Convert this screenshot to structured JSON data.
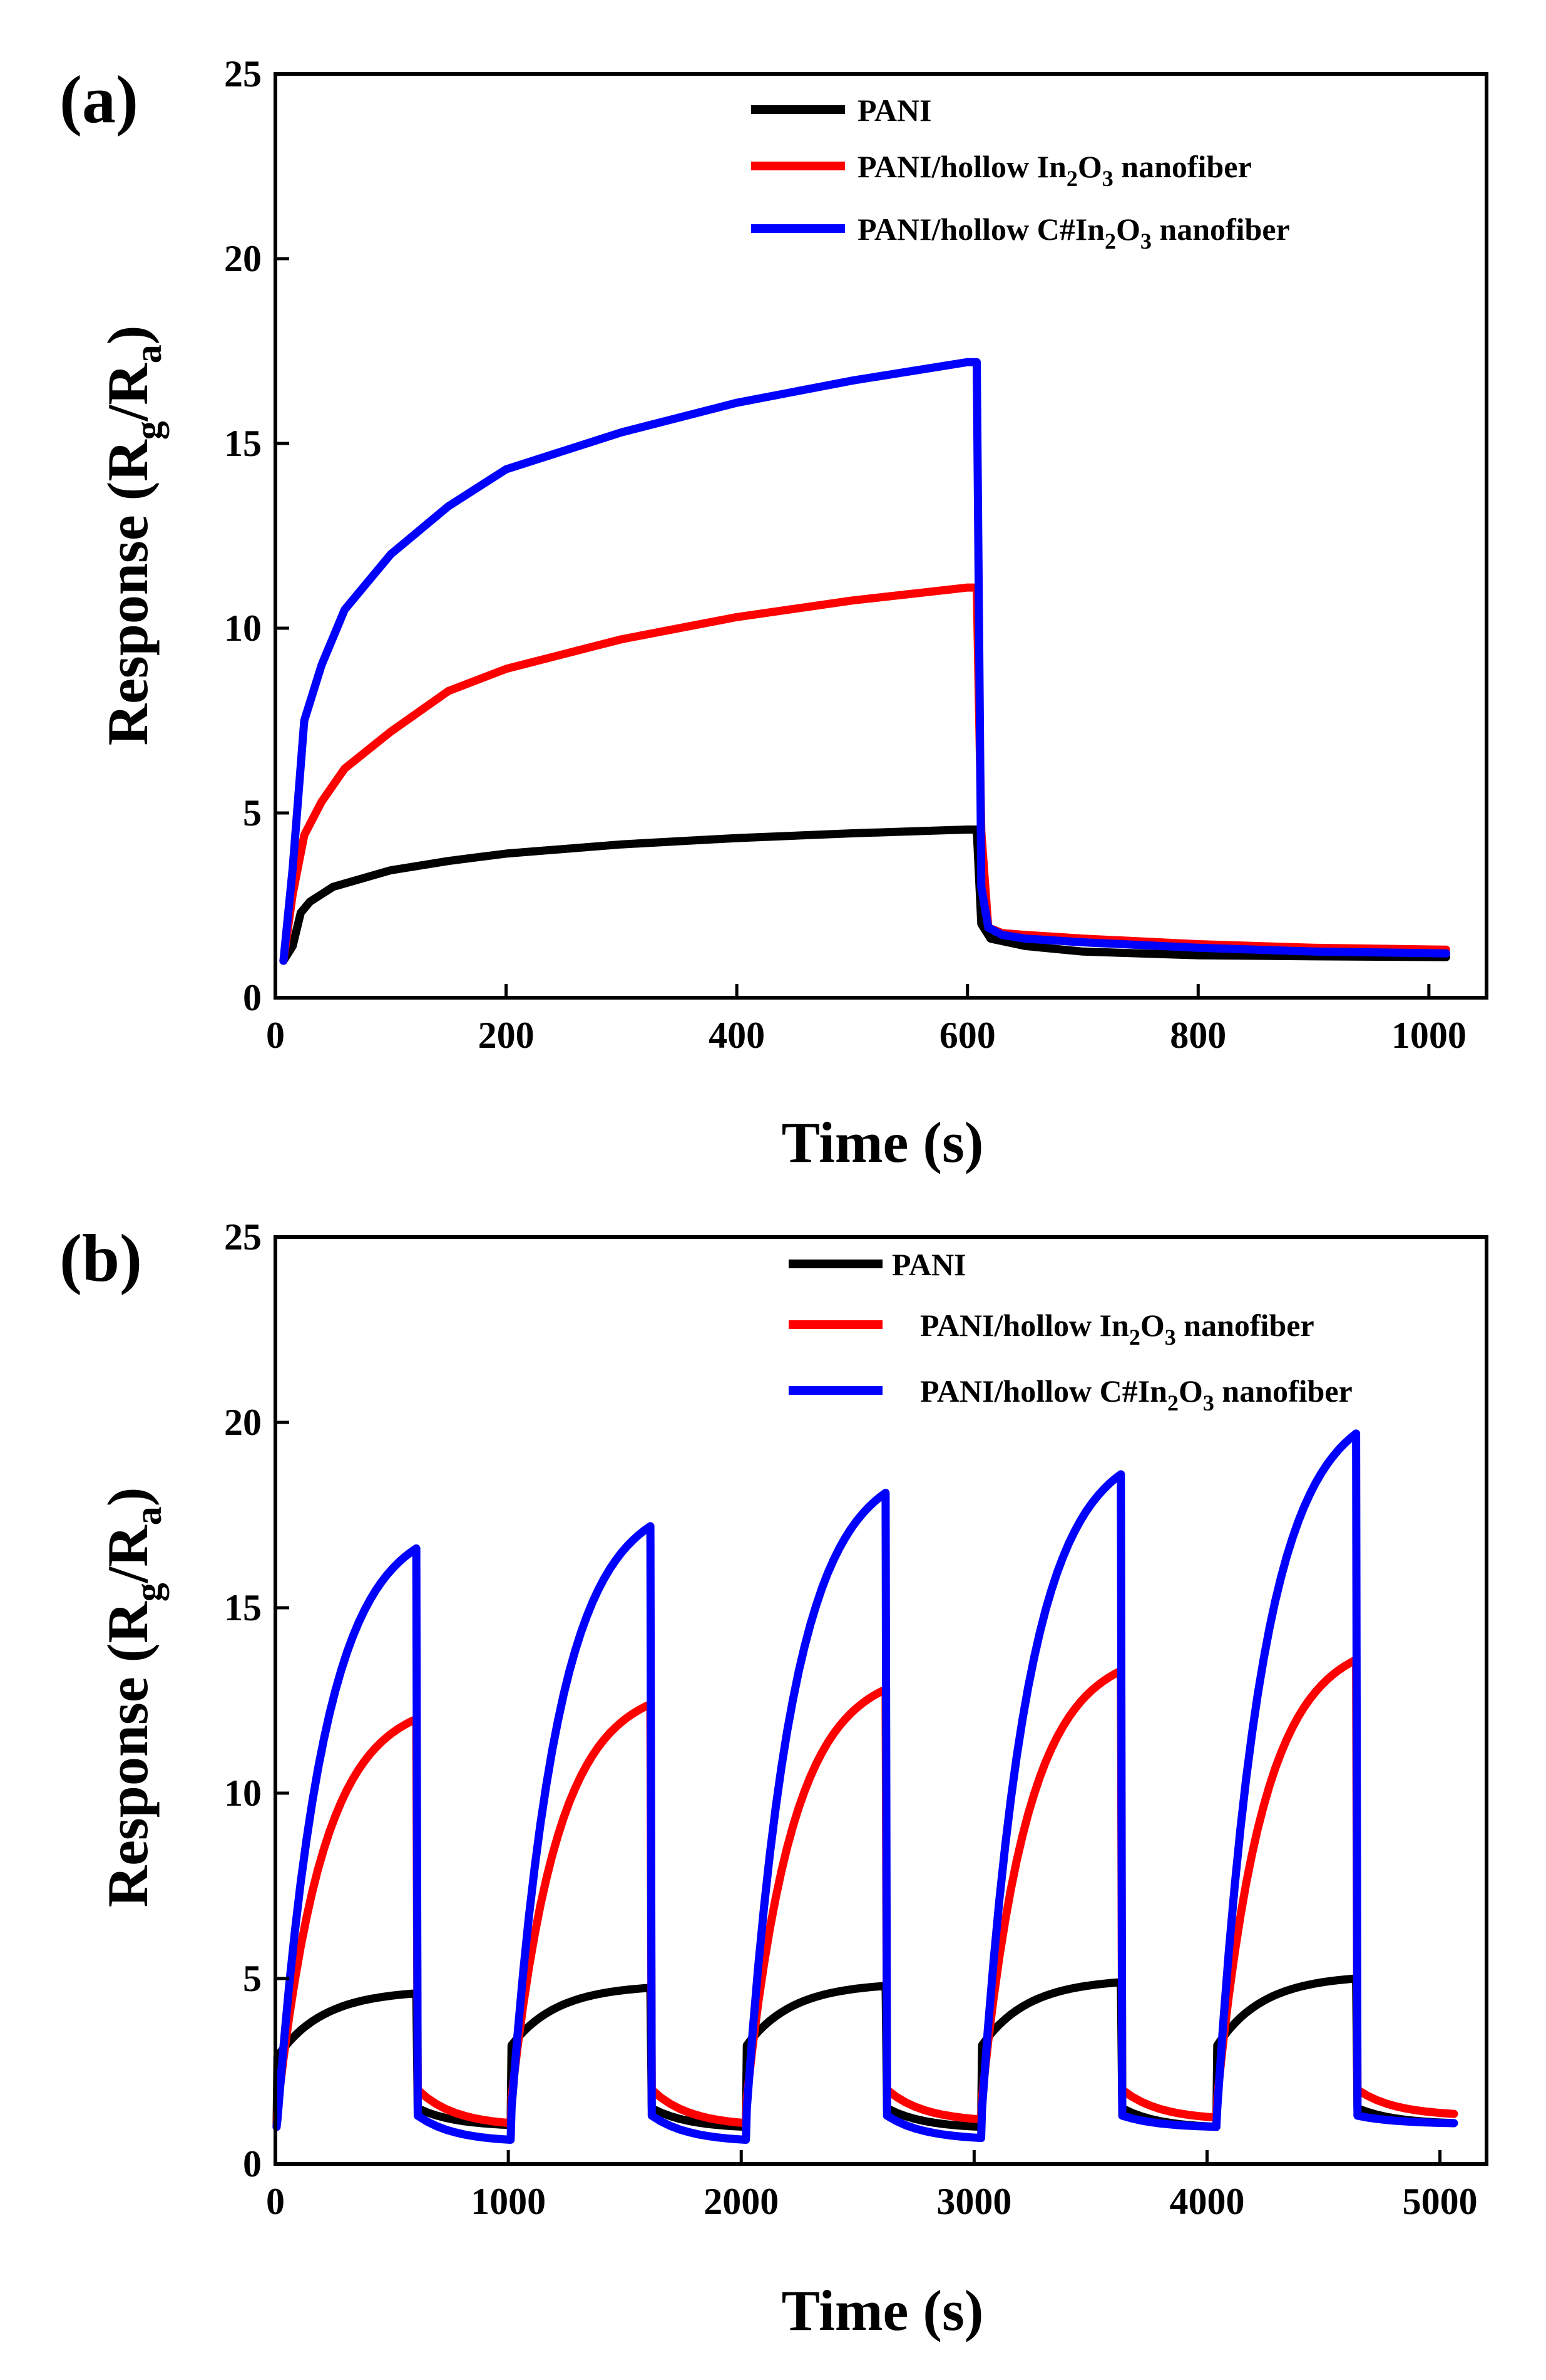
{
  "chart_data": [
    {
      "type": "line",
      "panel_label": "(a)",
      "xlabel": "Time (s)",
      "ylabel": {
        "main": "Response (R",
        "sub1": "g",
        "mid": "/R",
        "sub2": "a",
        "end": ")"
      },
      "xlim": [
        0,
        1050
      ],
      "ylim": [
        0,
        25
      ],
      "xticks": [
        0,
        200,
        400,
        600,
        800,
        1000
      ],
      "yticks": [
        0,
        5,
        10,
        15,
        20,
        25
      ],
      "legend_position": "top-right",
      "series": [
        {
          "name": "PANI",
          "legend": {
            "pre": "PANI"
          },
          "color": "#000000",
          "points": [
            [
              7,
              1.0
            ],
            [
              15,
              1.4
            ],
            [
              22,
              2.3
            ],
            [
              30,
              2.6
            ],
            [
              50,
              3.0
            ],
            [
              100,
              3.45
            ],
            [
              150,
              3.7
            ],
            [
              200,
              3.9
            ],
            [
              300,
              4.15
            ],
            [
              400,
              4.32
            ],
            [
              500,
              4.45
            ],
            [
              600,
              4.55
            ],
            [
              608,
              4.55
            ],
            [
              612,
              2.0
            ],
            [
              620,
              1.6
            ],
            [
              650,
              1.4
            ],
            [
              700,
              1.25
            ],
            [
              800,
              1.15
            ],
            [
              900,
              1.12
            ],
            [
              1015,
              1.1
            ]
          ]
        },
        {
          "name": "PANI/hollow In2O3 nanofiber",
          "legend": {
            "pre": "PANI/hollow In",
            "sub1": "2",
            "mid": "O",
            "sub2": "3",
            "post": " nanofiber"
          },
          "color": "#ff0000",
          "points": [
            [
              7,
              1.0
            ],
            [
              15,
              2.8
            ],
            [
              25,
              4.4
            ],
            [
              40,
              5.3
            ],
            [
              60,
              6.2
            ],
            [
              100,
              7.2
            ],
            [
              150,
              8.3
            ],
            [
              200,
              8.9
            ],
            [
              300,
              9.7
            ],
            [
              400,
              10.3
            ],
            [
              500,
              10.75
            ],
            [
              600,
              11.1
            ],
            [
              608,
              11.1
            ],
            [
              612,
              4.5
            ],
            [
              618,
              1.9
            ],
            [
              630,
              1.75
            ],
            [
              650,
              1.7
            ],
            [
              700,
              1.6
            ],
            [
              800,
              1.45
            ],
            [
              900,
              1.35
            ],
            [
              1015,
              1.3
            ]
          ]
        },
        {
          "name": "PANI/hollow C#In2O3 nanofiber",
          "legend": {
            "pre": "PANI/hollow C#In",
            "sub1": "2",
            "mid": "O",
            "sub2": "3",
            "post": " nanofiber"
          },
          "color": "#0000ff",
          "points": [
            [
              7,
              1.0
            ],
            [
              15,
              3.5
            ],
            [
              25,
              7.5
            ],
            [
              40,
              9.0
            ],
            [
              60,
              10.5
            ],
            [
              100,
              12.0
            ],
            [
              150,
              13.3
            ],
            [
              200,
              14.3
            ],
            [
              300,
              15.3
            ],
            [
              400,
              16.1
            ],
            [
              500,
              16.7
            ],
            [
              600,
              17.2
            ],
            [
              608,
              17.2
            ],
            [
              612,
              3.0
            ],
            [
              618,
              1.9
            ],
            [
              630,
              1.7
            ],
            [
              650,
              1.6
            ],
            [
              700,
              1.5
            ],
            [
              800,
              1.35
            ],
            [
              900,
              1.25
            ],
            [
              1015,
              1.2
            ]
          ]
        }
      ]
    },
    {
      "type": "line",
      "panel_label": "(b)",
      "xlabel": "Time (s)",
      "ylabel": {
        "main": "Response (R",
        "sub1": "g",
        "mid": "/R",
        "sub2": "a",
        "end": ")"
      },
      "xlim": [
        0,
        5200
      ],
      "ylim": [
        0,
        25
      ],
      "xticks": [
        0,
        1000,
        2000,
        3000,
        4000,
        5000
      ],
      "yticks": [
        0,
        5,
        10,
        15,
        20,
        25
      ],
      "legend_position": "top-right",
      "cycle_starts": [
        5,
        1010,
        2020,
        3030,
        4040
      ],
      "exposure_duration": 600,
      "series": [
        {
          "name": "PANI",
          "legend": {
            "pre": "PANI"
          },
          "color": "#000000",
          "rise_start": 2.9,
          "peaks": [
            4.6,
            4.75,
            4.8,
            4.9,
            5.0
          ],
          "fall_to": 1.5,
          "recovered": [
            1.05,
            1.0,
            1.0,
            1.0,
            1.1
          ]
        },
        {
          "name": "PANI/hollow In2O3 nanofiber",
          "legend": {
            "pre": "PANI/hollow In",
            "sub1": "2",
            "mid": "O",
            "sub2": "3",
            "post": " nanofiber"
          },
          "color": "#ff0000",
          "rise_start": 1.5,
          "peaks": [
            12.0,
            12.4,
            12.8,
            13.3,
            13.6
          ],
          "fall_to": 2.0,
          "recovered": [
            1.1,
            1.1,
            1.2,
            1.25,
            1.35
          ]
        },
        {
          "name": "PANI/hollow C#In2O3 nanofiber",
          "legend": {
            "pre": "PANI/hollow C#In",
            "sub1": "2",
            "mid": "O",
            "sub2": "3",
            "post": " nanofiber"
          },
          "color": "#0000ff",
          "rise_start": 1.2,
          "peaks": [
            16.6,
            17.2,
            18.1,
            18.6,
            19.7
          ],
          "fall_to": 1.3,
          "recovered": [
            0.65,
            0.65,
            0.7,
            1.0,
            1.1
          ]
        }
      ]
    }
  ]
}
